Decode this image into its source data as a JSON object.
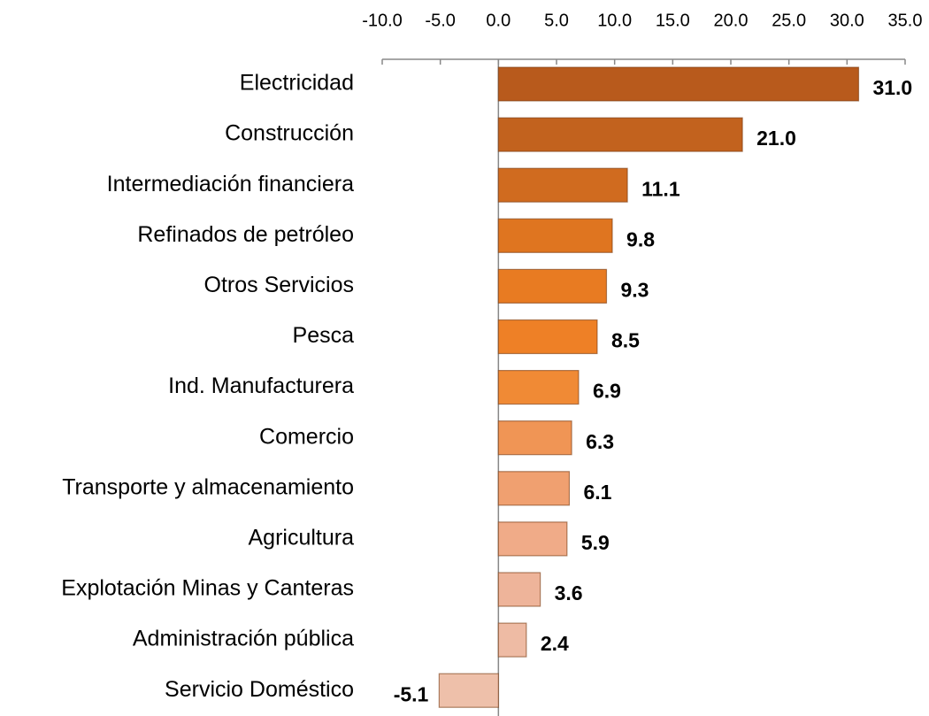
{
  "chart_data": {
    "type": "bar",
    "orientation": "horizontal",
    "categories": [
      "Electricidad",
      "Construcción",
      "Intermediación financiera",
      "Refinados de petróleo",
      "Otros Servicios",
      "Pesca",
      "Ind. Manufacturera",
      "Comercio",
      "Transporte y almacenamiento",
      "Agricultura",
      "Explotación Minas y Canteras",
      "Administración pública",
      "Servicio Doméstico"
    ],
    "values": [
      31.0,
      21.0,
      11.1,
      9.8,
      9.3,
      8.5,
      6.9,
      6.3,
      6.1,
      5.9,
      3.6,
      2.4,
      -5.1
    ],
    "value_labels": [
      "31.0",
      "21.0",
      "11.1",
      "9.8",
      "9.3",
      "8.5",
      "6.9",
      "6.3",
      "6.1",
      "5.9",
      "3.6",
      "2.4",
      "-5.1"
    ],
    "colors": [
      "#b85a1c",
      "#c2621e",
      "#d06b1f",
      "#df7520",
      "#e87b22",
      "#ee8026",
      "#f08a35",
      "#f09555",
      "#f0a070",
      "#f0ab88",
      "#eeb49a",
      "#eebba4",
      "#eec0aa"
    ],
    "xlim": [
      -10,
      35
    ],
    "xticks": [
      {
        "value": -10,
        "label": "-10.0"
      },
      {
        "value": -5,
        "label": "-5.0"
      },
      {
        "value": 0,
        "label": "0.0"
      },
      {
        "value": 5,
        "label": "5.0"
      },
      {
        "value": 10,
        "label": "10.0"
      },
      {
        "value": 15,
        "label": "15.0"
      },
      {
        "value": 20,
        "label": "20.0"
      },
      {
        "value": 25,
        "label": "25.0"
      },
      {
        "value": 30,
        "label": "30.0"
      },
      {
        "value": 35,
        "label": "35.0"
      }
    ],
    "grid": false
  }
}
